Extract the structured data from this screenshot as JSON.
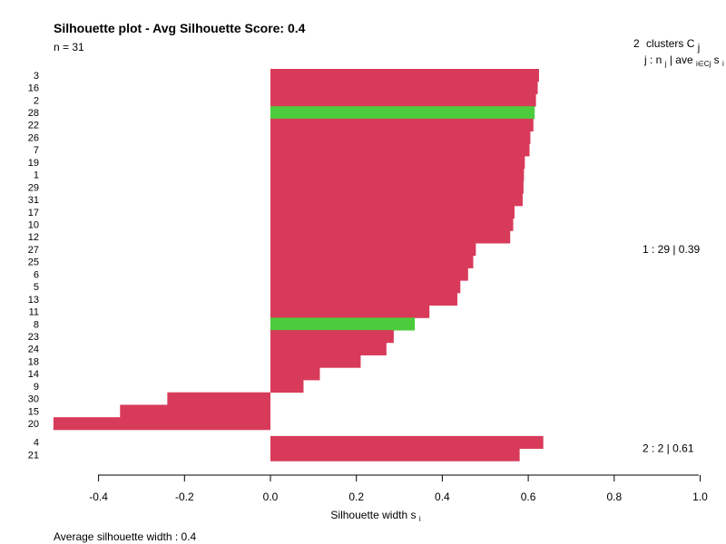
{
  "chart_data": {
    "type": "bar",
    "orientation": "horizontal",
    "title": "Silhouette plot - Avg Silhouette Score: 0.4",
    "subtitle": "n = 31",
    "xlabel_main": "Silhouette width s",
    "xlabel_sub": "i",
    "footer": "Average silhouette width :  0.4",
    "xlim": [
      -0.4,
      1.0
    ],
    "xticks": [
      -0.4,
      -0.2,
      0.0,
      0.2,
      0.4,
      0.6,
      0.8,
      1.0
    ],
    "xtick_labels": [
      "-0.4",
      "-0.2",
      "0.0",
      "0.2",
      "0.4",
      "0.6",
      "0.8",
      "1.0"
    ],
    "legend": {
      "header_count": "2",
      "header_text": "clusters  C",
      "header_sub": "j",
      "subheader_j": "j :  n",
      "subheader_j_sub": "j",
      "subheader_ave": " | ave",
      "subheader_ave_sub": "i∈Cj",
      "subheader_s": "  s",
      "subheader_s_sub": "i"
    },
    "colors": {
      "bar": "#d83a5a",
      "highlight": "#4ccc3c"
    },
    "clusters": [
      {
        "label": "1 :   29  |  0.39",
        "items": [
          {
            "id": "3",
            "value": 0.625,
            "highlight": false
          },
          {
            "id": "16",
            "value": 0.622,
            "highlight": false
          },
          {
            "id": "2",
            "value": 0.618,
            "highlight": false
          },
          {
            "id": "28",
            "value": 0.615,
            "highlight": true
          },
          {
            "id": "22",
            "value": 0.612,
            "highlight": false
          },
          {
            "id": "26",
            "value": 0.605,
            "highlight": false
          },
          {
            "id": "7",
            "value": 0.603,
            "highlight": false
          },
          {
            "id": "19",
            "value": 0.592,
            "highlight": false
          },
          {
            "id": "1",
            "value": 0.59,
            "highlight": false
          },
          {
            "id": "29",
            "value": 0.589,
            "highlight": false
          },
          {
            "id": "31",
            "value": 0.587,
            "highlight": false
          },
          {
            "id": "17",
            "value": 0.568,
            "highlight": false
          },
          {
            "id": "10",
            "value": 0.565,
            "highlight": false
          },
          {
            "id": "12",
            "value": 0.558,
            "highlight": false
          },
          {
            "id": "27",
            "value": 0.478,
            "highlight": false
          },
          {
            "id": "25",
            "value": 0.472,
            "highlight": false
          },
          {
            "id": "6",
            "value": 0.46,
            "highlight": false
          },
          {
            "id": "5",
            "value": 0.442,
            "highlight": false
          },
          {
            "id": "13",
            "value": 0.435,
            "highlight": false
          },
          {
            "id": "11",
            "value": 0.37,
            "highlight": false
          },
          {
            "id": "8",
            "value": 0.336,
            "highlight": true
          },
          {
            "id": "23",
            "value": 0.287,
            "highlight": false
          },
          {
            "id": "24",
            "value": 0.27,
            "highlight": false
          },
          {
            "id": "18",
            "value": 0.21,
            "highlight": false
          },
          {
            "id": "14",
            "value": 0.115,
            "highlight": false
          },
          {
            "id": "9",
            "value": 0.077,
            "highlight": false
          },
          {
            "id": "30",
            "value": -0.24,
            "highlight": false
          },
          {
            "id": "15",
            "value": -0.35,
            "highlight": false
          },
          {
            "id": "20",
            "value": -0.505,
            "highlight": false
          }
        ]
      },
      {
        "label": "2 :   2  |  0.61",
        "items": [
          {
            "id": "4",
            "value": 0.635,
            "highlight": false
          },
          {
            "id": "21",
            "value": 0.58,
            "highlight": false
          }
        ]
      }
    ]
  }
}
